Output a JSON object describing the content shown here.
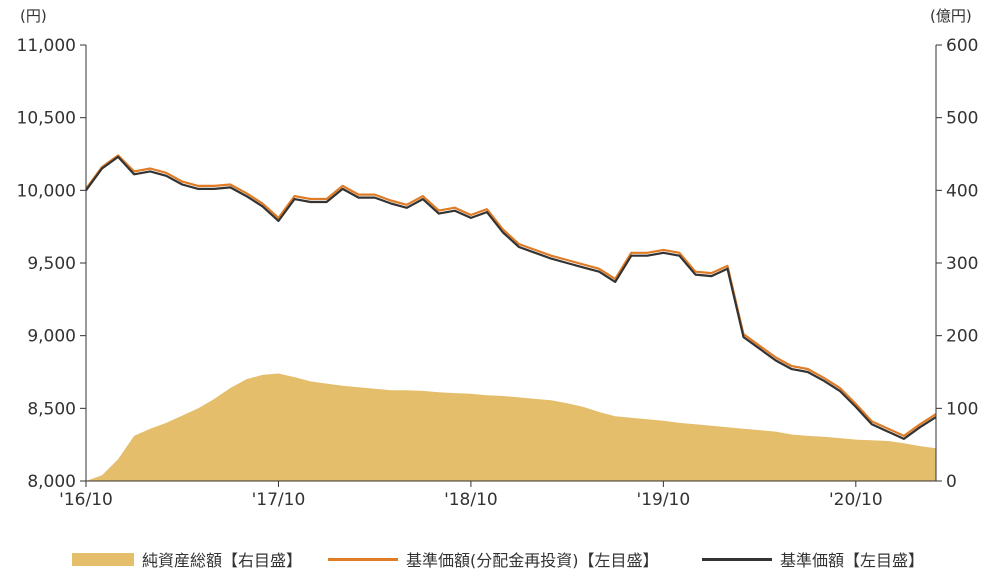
{
  "chart_data": {
    "type": "line",
    "left_unit": "(円)",
    "right_unit": "(億円)",
    "x_ticks": [
      "'16/10",
      "'17/10",
      "'18/10",
      "'19/10",
      "'20/10"
    ],
    "y_left_ticks": [
      "8,000",
      "8,500",
      "9,000",
      "9,500",
      "10,000",
      "10,500",
      "11,000"
    ],
    "y_right_ticks": [
      "0",
      "100",
      "200",
      "300",
      "400",
      "500",
      "600"
    ],
    "ylim_left": [
      8000,
      11000
    ],
    "ylim_right": [
      0,
      600
    ],
    "xlim": [
      "2016-10",
      "2021-03"
    ],
    "grid": false,
    "legend_position": "bottom",
    "colors": {
      "net_assets": "#e5be6c",
      "nav_reinvested": "#e07b26",
      "nav": "#333333"
    },
    "series": [
      {
        "name": "純資産総額【右目盛】",
        "axis": "right",
        "kind": "area",
        "x": [
          "2016-10",
          "2016-11",
          "2016-12",
          "2017-01",
          "2017-02",
          "2017-03",
          "2017-04",
          "2017-05",
          "2017-06",
          "2017-07",
          "2017-08",
          "2017-09",
          "2017-10",
          "2017-11",
          "2017-12",
          "2018-01",
          "2018-02",
          "2018-03",
          "2018-04",
          "2018-05",
          "2018-06",
          "2018-07",
          "2018-08",
          "2018-09",
          "2018-10",
          "2018-11",
          "2018-12",
          "2019-01",
          "2019-02",
          "2019-03",
          "2019-04",
          "2019-05",
          "2019-06",
          "2019-07",
          "2019-08",
          "2019-09",
          "2019-10",
          "2019-11",
          "2019-12",
          "2020-01",
          "2020-02",
          "2020-03",
          "2020-04",
          "2020-05",
          "2020-06",
          "2020-07",
          "2020-08",
          "2020-09",
          "2020-10",
          "2020-11",
          "2020-12",
          "2021-01",
          "2021-02",
          "2021-03"
        ],
        "values": [
          0,
          8,
          30,
          62,
          72,
          80,
          90,
          100,
          113,
          128,
          140,
          146,
          148,
          143,
          137,
          134,
          131,
          129,
          127,
          125,
          125,
          124,
          122,
          121,
          120,
          118,
          117,
          115,
          113,
          111,
          107,
          102,
          95,
          89,
          87,
          85,
          83,
          80,
          78,
          76,
          74,
          72,
          70,
          68,
          64,
          62,
          61,
          59,
          57,
          56,
          55,
          52,
          48,
          45
        ]
      },
      {
        "name": "基準価額(分配金再投資)【左目盛】",
        "axis": "left",
        "kind": "line",
        "x": [
          "2016-10",
          "2016-11",
          "2016-12",
          "2017-01",
          "2017-02",
          "2017-03",
          "2017-04",
          "2017-05",
          "2017-06",
          "2017-07",
          "2017-08",
          "2017-09",
          "2017-10",
          "2017-11",
          "2017-12",
          "2018-01",
          "2018-02",
          "2018-03",
          "2018-04",
          "2018-05",
          "2018-06",
          "2018-07",
          "2018-08",
          "2018-09",
          "2018-10",
          "2018-11",
          "2018-12",
          "2019-01",
          "2019-02",
          "2019-03",
          "2019-04",
          "2019-05",
          "2019-06",
          "2019-07",
          "2019-08",
          "2019-09",
          "2019-10",
          "2019-11",
          "2019-12",
          "2020-01",
          "2020-02",
          "2020-03",
          "2020-04",
          "2020-05",
          "2020-06",
          "2020-07",
          "2020-08",
          "2020-09",
          "2020-10",
          "2020-11",
          "2020-12",
          "2021-01",
          "2021-02",
          "2021-03"
        ],
        "values": [
          10000,
          10150,
          10230,
          10120,
          10140,
          10110,
          10050,
          10020,
          10020,
          10030,
          9970,
          9900,
          9800,
          9950,
          9930,
          9930,
          10020,
          9960,
          9960,
          9920,
          9890,
          9950,
          9850,
          9870,
          9820,
          9860,
          9720,
          9620,
          9580,
          9540,
          9510,
          9480,
          9450,
          9380,
          9560,
          9560,
          9580,
          9560,
          9430,
          9420,
          9470,
          9000,
          8920,
          8840,
          8780,
          8760,
          8700,
          8630,
          8520,
          8400,
          8350,
          8300,
          8380,
          8450
        ]
      },
      {
        "name": "基準価額【左目盛】",
        "axis": "left",
        "kind": "line",
        "x": [
          "2016-10",
          "2016-11",
          "2016-12",
          "2017-01",
          "2017-02",
          "2017-03",
          "2017-04",
          "2017-05",
          "2017-06",
          "2017-07",
          "2017-08",
          "2017-09",
          "2017-10",
          "2017-11",
          "2017-12",
          "2018-01",
          "2018-02",
          "2018-03",
          "2018-04",
          "2018-05",
          "2018-06",
          "2018-07",
          "2018-08",
          "2018-09",
          "2018-10",
          "2018-11",
          "2018-12",
          "2019-01",
          "2019-02",
          "2019-03",
          "2019-04",
          "2019-05",
          "2019-06",
          "2019-07",
          "2019-08",
          "2019-09",
          "2019-10",
          "2019-11",
          "2019-12",
          "2020-01",
          "2020-02",
          "2020-03",
          "2020-04",
          "2020-05",
          "2020-06",
          "2020-07",
          "2020-08",
          "2020-09",
          "2020-10",
          "2020-11",
          "2020-12",
          "2021-01",
          "2021-02",
          "2021-03"
        ],
        "values": [
          10000,
          10150,
          10230,
          10110,
          10130,
          10100,
          10040,
          10010,
          10010,
          10020,
          9960,
          9890,
          9790,
          9940,
          9920,
          9920,
          10010,
          9950,
          9950,
          9910,
          9880,
          9940,
          9840,
          9860,
          9810,
          9850,
          9710,
          9610,
          9570,
          9530,
          9500,
          9470,
          9440,
          9370,
          9550,
          9550,
          9570,
          9550,
          9420,
          9410,
          9460,
          8990,
          8910,
          8830,
          8770,
          8750,
          8690,
          8620,
          8510,
          8390,
          8340,
          8290,
          8370,
          8440
        ]
      }
    ]
  }
}
